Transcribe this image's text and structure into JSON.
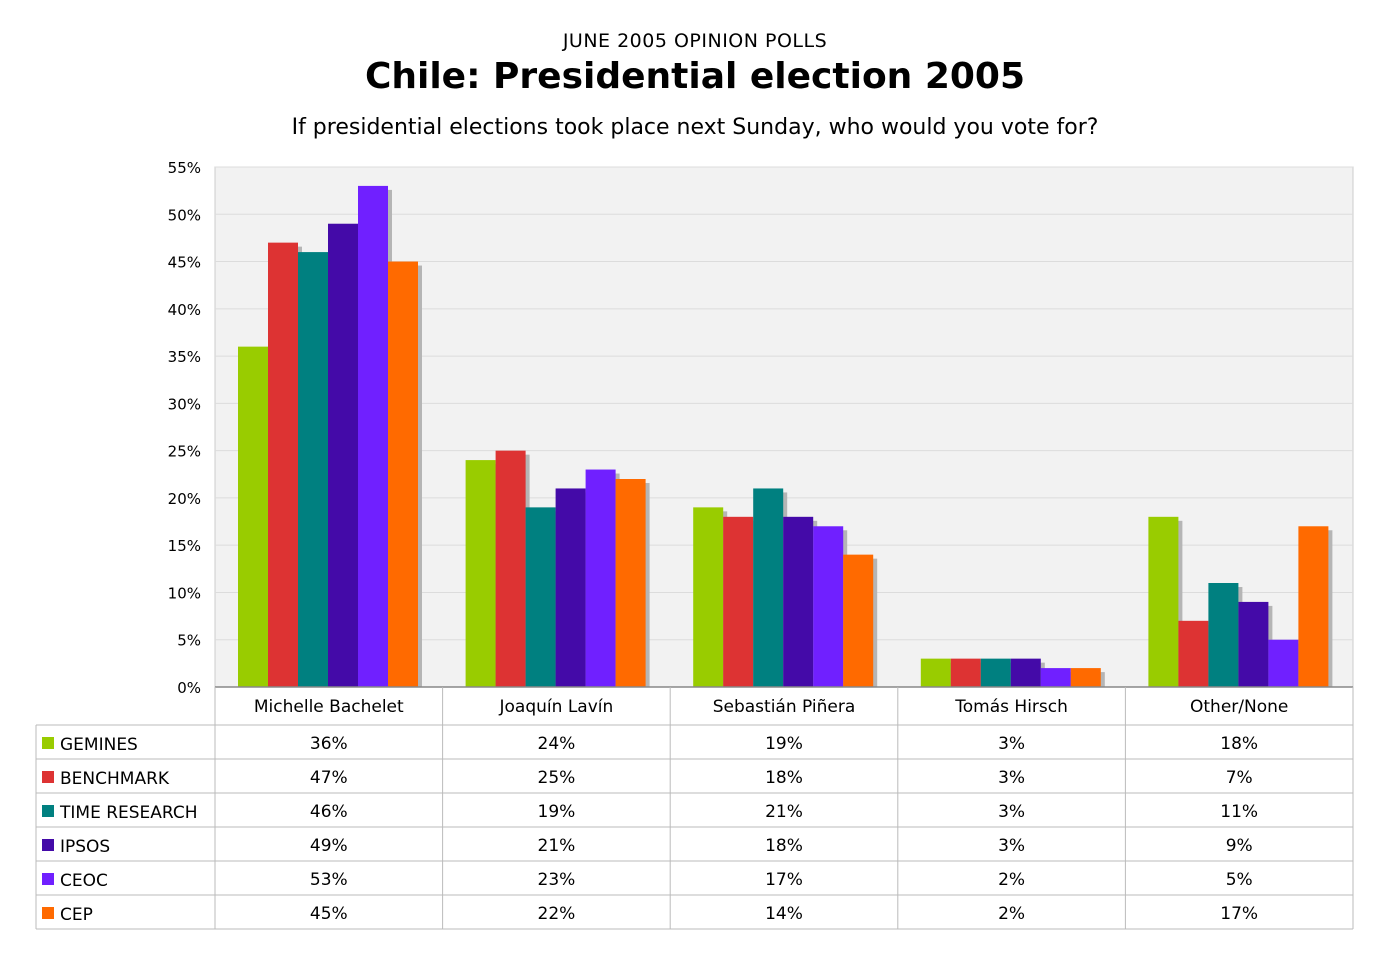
{
  "chart_data": {
    "type": "bar",
    "supertitle": "JUNE 2005 OPINION POLLS",
    "title": "Chile: Presidential election 2005",
    "subtitle": "If presidential elections took place next Sunday, who would you vote for?",
    "categories": [
      "Michelle Bachelet",
      "Joaquín Lavín",
      "Sebastián Piñera",
      "Tomás Hirsch",
      "Other/None"
    ],
    "ylim": [
      0,
      55
    ],
    "yticks": [
      "0%",
      "5%",
      "10%",
      "15%",
      "20%",
      "25%",
      "30%",
      "35%",
      "40%",
      "45%",
      "50%",
      "55%"
    ],
    "grid": true,
    "legend": "data-table-below",
    "series": [
      {
        "name": "GEMINES",
        "color": "#99cc00",
        "values": [
          36,
          24,
          19,
          3,
          18
        ],
        "labels": [
          "36%",
          "24%",
          "19%",
          "3%",
          "18%"
        ]
      },
      {
        "name": "BENCHMARK",
        "color": "#dd3333",
        "values": [
          47,
          25,
          18,
          3,
          7
        ],
        "labels": [
          "47%",
          "25%",
          "18%",
          "3%",
          "7%"
        ]
      },
      {
        "name": "TIME RESEARCH",
        "color": "#008080",
        "values": [
          46,
          19,
          21,
          3,
          11
        ],
        "labels": [
          "46%",
          "19%",
          "21%",
          "3%",
          "11%"
        ]
      },
      {
        "name": "IPSOS",
        "color": "#440aa8",
        "values": [
          49,
          21,
          18,
          3,
          9
        ],
        "labels": [
          "49%",
          "21%",
          "18%",
          "3%",
          "9%"
        ]
      },
      {
        "name": "CEOC",
        "color": "#7020ff",
        "values": [
          53,
          23,
          17,
          2,
          5
        ],
        "labels": [
          "53%",
          "23%",
          "17%",
          "2%",
          "5%"
        ]
      },
      {
        "name": "CEP",
        "color": "#ff6a00",
        "values": [
          45,
          22,
          14,
          2,
          17
        ],
        "labels": [
          "45%",
          "22%",
          "14%",
          "2%",
          "17%"
        ]
      }
    ]
  }
}
